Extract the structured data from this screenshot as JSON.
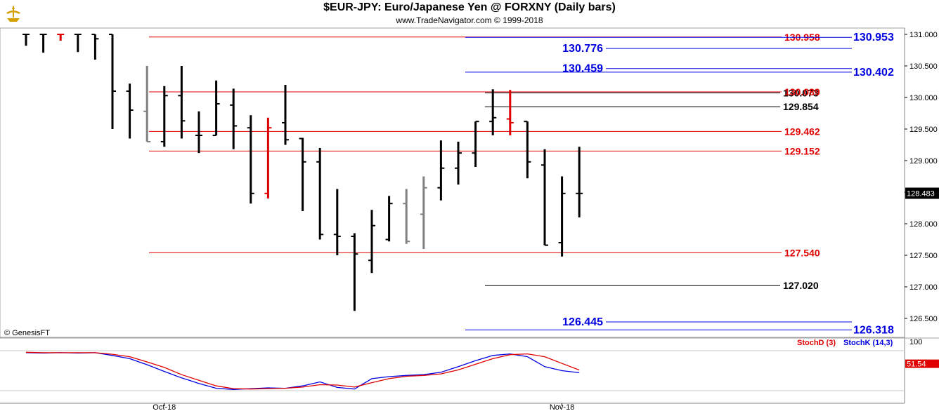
{
  "header": {
    "title": "$EUR-JPY:  Euro/Japanese Yen @ FORXNY  (Daily bars)",
    "subtitle": "www.TradeNavigator.com © 1999-2018",
    "copyright": "© GenesisFT"
  },
  "colors": {
    "up": "#000000",
    "gray": "#808080",
    "red": "#e00000",
    "blue": "#0000e0",
    "grid": "#c8c8c8"
  },
  "chart_data": [
    {
      "type": "ohlc",
      "title": "$EUR-JPY:  Euro/Japanese Yen @ FORXNY  (Daily bars)",
      "ylim": [
        126.2,
        131.1
      ],
      "y_ticks": [
        "131.000",
        "130.500",
        "130.000",
        "129.500",
        "129.000",
        "128.500",
        "128.000",
        "127.500",
        "127.000",
        "126.500"
      ],
      "x_labels": [
        {
          "label": "Oct-18",
          "index": 8
        },
        {
          "label": "Nov-18",
          "index": 31
        }
      ],
      "last_price": "128.483",
      "bars": [
        {
          "o": 131.0,
          "h": 131.0,
          "l": 130.82,
          "c": 131.0,
          "color": "black"
        },
        {
          "o": 131.0,
          "h": 131.0,
          "l": 130.71,
          "c": 131.0,
          "color": "black"
        },
        {
          "o": 131.0,
          "h": 131.0,
          "l": 130.9,
          "c": 131.0,
          "color": "red"
        },
        {
          "o": 131.0,
          "h": 131.0,
          "l": 130.72,
          "c": 131.0,
          "color": "black"
        },
        {
          "o": 131.0,
          "h": 131.0,
          "l": 130.6,
          "c": 130.93,
          "color": "black"
        },
        {
          "o": 131.0,
          "h": 131.0,
          "l": 129.5,
          "c": 130.1,
          "color": "black"
        },
        {
          "o": 130.1,
          "h": 130.22,
          "l": 129.35,
          "c": 129.8,
          "color": "black"
        },
        {
          "o": 129.78,
          "h": 130.5,
          "l": 129.3,
          "c": 129.3,
          "color": "gray"
        },
        {
          "o": 129.3,
          "h": 130.18,
          "l": 129.22,
          "c": 130.03,
          "color": "black"
        },
        {
          "o": 130.03,
          "h": 130.5,
          "l": 129.35,
          "c": 129.63,
          "color": "black"
        },
        {
          "o": 129.4,
          "h": 129.78,
          "l": 129.12,
          "c": 129.4,
          "color": "black"
        },
        {
          "o": 129.4,
          "h": 130.27,
          "l": 129.4,
          "c": 129.9,
          "color": "black"
        },
        {
          "o": 129.88,
          "h": 130.14,
          "l": 129.18,
          "c": 129.55,
          "color": "black"
        },
        {
          "o": 129.52,
          "h": 129.72,
          "l": 128.32,
          "c": 128.48,
          "color": "black"
        },
        {
          "o": 128.48,
          "h": 129.68,
          "l": 128.4,
          "c": 129.52,
          "color": "red"
        },
        {
          "o": 129.6,
          "h": 130.2,
          "l": 129.25,
          "c": 129.33,
          "color": "black"
        },
        {
          "o": 129.35,
          "h": 129.36,
          "l": 128.2,
          "c": 128.98,
          "color": "black"
        },
        {
          "o": 128.98,
          "h": 129.2,
          "l": 127.75,
          "c": 127.83,
          "color": "black"
        },
        {
          "o": 127.83,
          "h": 128.55,
          "l": 127.5,
          "c": 127.8,
          "color": "black"
        },
        {
          "o": 127.8,
          "h": 127.85,
          "l": 126.62,
          "c": 127.52,
          "color": "black"
        },
        {
          "o": 127.42,
          "h": 128.22,
          "l": 127.22,
          "c": 127.97,
          "color": "black"
        },
        {
          "o": 127.75,
          "h": 128.44,
          "l": 127.72,
          "c": 128.32,
          "color": "black"
        },
        {
          "o": 128.32,
          "h": 128.55,
          "l": 127.68,
          "c": 127.72,
          "color": "gray"
        },
        {
          "o": 128.15,
          "h": 128.75,
          "l": 127.6,
          "c": 128.57,
          "color": "gray"
        },
        {
          "o": 128.57,
          "h": 129.32,
          "l": 128.37,
          "c": 128.88,
          "color": "black"
        },
        {
          "o": 128.88,
          "h": 129.3,
          "l": 128.62,
          "c": 129.12,
          "color": "black"
        },
        {
          "o": 129.12,
          "h": 129.62,
          "l": 128.9,
          "c": 129.62,
          "color": "black"
        },
        {
          "o": 129.62,
          "h": 130.13,
          "l": 129.4,
          "c": 129.68,
          "color": "black"
        },
        {
          "o": 129.66,
          "h": 130.12,
          "l": 129.4,
          "c": 129.6,
          "color": "red"
        },
        {
          "o": 129.62,
          "h": 129.62,
          "l": 128.72,
          "c": 128.98,
          "color": "black"
        },
        {
          "o": 128.93,
          "h": 129.18,
          "l": 127.66,
          "c": 127.66,
          "color": "black"
        },
        {
          "o": 127.7,
          "h": 128.75,
          "l": 127.48,
          "c": 128.48,
          "color": "black"
        },
        {
          "o": 128.48,
          "h": 129.22,
          "l": 128.1,
          "c": 128.48,
          "color": "black"
        }
      ],
      "levels": [
        {
          "value": 130.958,
          "label": "130.958",
          "color": "red",
          "label_pos": "right"
        },
        {
          "value": 130.953,
          "label": "130.953",
          "color": "blue",
          "label_pos": "far"
        },
        {
          "value": 130.776,
          "label": "130.776",
          "color": "blue",
          "label_pos": "left"
        },
        {
          "value": 130.459,
          "label": "130.459",
          "color": "blue",
          "label_pos": "left"
        },
        {
          "value": 130.402,
          "label": "130.402",
          "color": "blue",
          "label_pos": "far"
        },
        {
          "value": 130.073,
          "label": "130.073",
          "color": "black",
          "label_pos": "right"
        },
        {
          "value": 130.089,
          "label": "130.089",
          "color": "red",
          "label_pos": "right"
        },
        {
          "value": 129.854,
          "label": "129.854",
          "color": "black",
          "label_pos": "right"
        },
        {
          "value": 129.462,
          "label": "129.462",
          "color": "red",
          "label_pos": "right"
        },
        {
          "value": 129.152,
          "label": "129.152",
          "color": "red",
          "label_pos": "right"
        },
        {
          "value": 127.54,
          "label": "127.540",
          "color": "red",
          "label_pos": "right"
        },
        {
          "value": 127.02,
          "label": "127.020",
          "color": "black",
          "label_pos": "right"
        },
        {
          "value": 126.445,
          "label": "126.445",
          "color": "blue",
          "label_pos": "left"
        },
        {
          "value": 126.318,
          "label": "126.318",
          "color": "blue",
          "label_pos": "far"
        }
      ]
    },
    {
      "type": "line",
      "ylim": [
        0,
        100
      ],
      "y_ticks": [
        "100"
      ],
      "legend": [
        "StochD (3)",
        "StochK (14,3)"
      ],
      "last_value": "51.54",
      "series": [
        {
          "name": "StochK (14,3)",
          "color": "blue",
          "values": [
            95,
            94,
            95,
            94,
            95,
            88,
            80,
            65,
            48,
            32,
            18,
            6,
            3,
            5,
            7,
            6,
            12,
            22,
            8,
            4,
            30,
            35,
            38,
            40,
            46,
            60,
            75,
            88,
            92,
            85,
            60,
            50,
            45
          ]
        },
        {
          "name": "StochD (3)",
          "color": "red",
          "values": [
            96,
            95,
            95,
            95,
            95,
            91,
            85,
            72,
            58,
            40,
            26,
            12,
            5,
            4,
            5,
            6,
            9,
            15,
            14,
            9,
            20,
            30,
            36,
            38,
            42,
            52,
            66,
            80,
            90,
            92,
            85,
            68,
            51.54
          ]
        }
      ]
    }
  ]
}
